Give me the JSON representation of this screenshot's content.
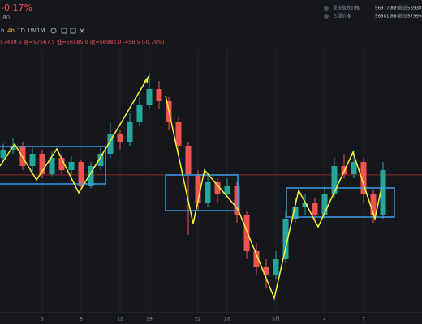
{
  "header": {
    "change": "-0.17%",
    "sub": ".80",
    "intervals": [
      "h",
      "4h",
      "1D",
      "1W",
      "1M"
    ],
    "ohlc": "57439.5 高=57567.5 低=56585.0 收=56982.0 -456.5 (-0.79%)",
    "right": [
      {
        "label": "现货指数价格",
        "value": "56977.82",
        "label2": "24h最低",
        "value2": "53938."
      },
      {
        "label": "合理价格",
        "value": "56981.83",
        "label2": "24h最高",
        "value2": "57999."
      }
    ]
  },
  "chart_data": {
    "type": "candlestick",
    "categories": [
      null,
      null,
      null,
      null,
      "5",
      null,
      null,
      null,
      "8",
      null,
      null,
      null,
      "12",
      null,
      null,
      "19",
      null,
      null,
      null,
      null,
      "22",
      null,
      null,
      "26",
      null,
      null,
      null,
      null,
      "5月",
      null,
      null,
      null,
      null,
      "4",
      null,
      null,
      null,
      "7",
      null,
      null
    ],
    "open": [
      57400,
      57600,
      57700,
      57200,
      57500,
      57000,
      57400,
      57100,
      57300,
      56700,
      57200,
      57500,
      58000,
      57800,
      58300,
      58700,
      59100,
      58800,
      58300,
      57700,
      57000,
      56300,
      56800,
      56500,
      56700,
      56000,
      55100,
      54700,
      54500,
      54900,
      55900,
      56200,
      56300,
      56000,
      56500,
      57200,
      57000,
      57300,
      56500,
      56000
    ],
    "high": [
      57750,
      57900,
      57800,
      57650,
      57600,
      57550,
      57500,
      57450,
      57350,
      57300,
      57700,
      58300,
      58100,
      58500,
      58900,
      59500,
      59300,
      58900,
      58400,
      57800,
      57100,
      57000,
      56900,
      56900,
      56800,
      56100,
      55300,
      54900,
      55100,
      56100,
      56400,
      56500,
      56400,
      56700,
      57400,
      57500,
      57600,
      57400,
      56600,
      57300
    ],
    "low": [
      57300,
      57500,
      57100,
      57050,
      56900,
      56950,
      57000,
      57000,
      56600,
      56650,
      57100,
      57400,
      57600,
      57700,
      58200,
      58600,
      58600,
      58100,
      57500,
      55500,
      56100,
      56200,
      56300,
      56400,
      55800,
      54900,
      54500,
      54200,
      54400,
      54800,
      55800,
      56000,
      55800,
      55900,
      56400,
      56900,
      56900,
      56300,
      55800,
      55900
    ],
    "close": [
      57600,
      57700,
      57200,
      57500,
      57000,
      57400,
      57100,
      57300,
      56700,
      57200,
      57500,
      58000,
      57800,
      58300,
      58700,
      59100,
      58800,
      58300,
      57700,
      57000,
      56300,
      56800,
      56500,
      56700,
      56000,
      55100,
      54700,
      54500,
      54900,
      55900,
      56200,
      56300,
      56000,
      56500,
      57200,
      57000,
      57300,
      56500,
      56000,
      57100
    ],
    "price_line": 56982,
    "ylim": [
      53600,
      60100
    ],
    "up_color": "#26a69a",
    "down_color": "#ef5350"
  }
}
